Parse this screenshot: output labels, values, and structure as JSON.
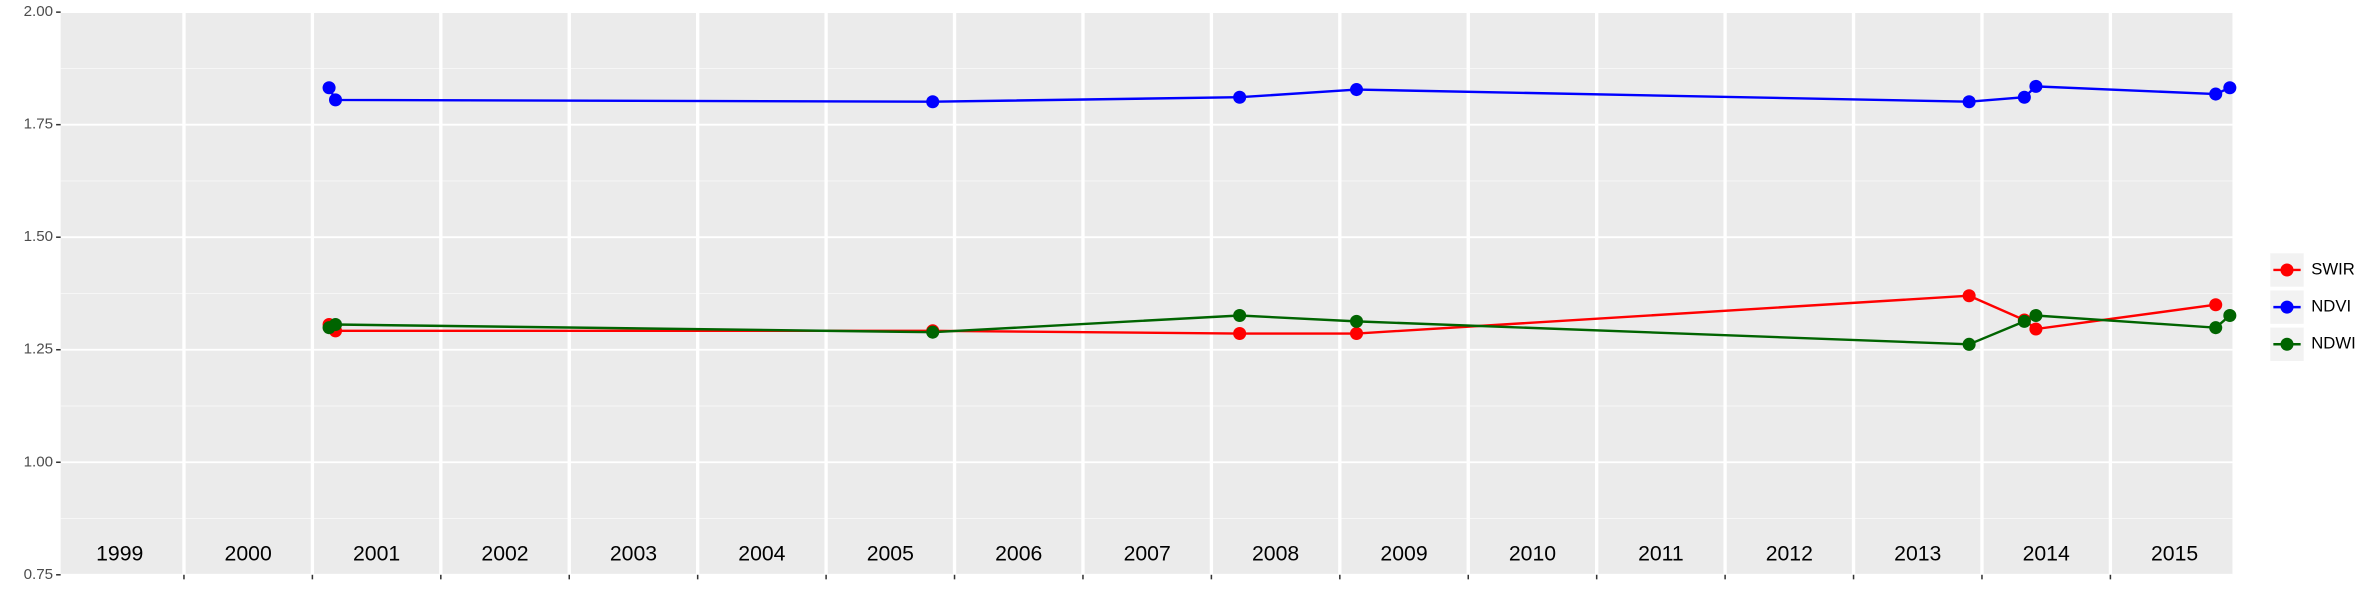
{
  "chart_data": {
    "type": "line",
    "x": [
      2001.13,
      2001.18,
      2005.83,
      2008.22,
      2009.13,
      2013.9,
      2014.33,
      2014.42,
      2015.82,
      2015.93
    ],
    "series": [
      {
        "name": "SWIR",
        "color": "#ff0000",
        "values": [
          1.306,
          1.292,
          1.292,
          1.286,
          1.286,
          1.37,
          1.316,
          1.296,
          1.35,
          null
        ]
      },
      {
        "name": "NDVI",
        "color": "#0000ff",
        "values": [
          1.832,
          1.805,
          1.801,
          1.811,
          1.828,
          1.801,
          1.811,
          1.835,
          1.818,
          1.832
        ]
      },
      {
        "name": "NDWI",
        "color": "#006400",
        "values": [
          1.299,
          1.306,
          1.289,
          1.326,
          1.313,
          1.262,
          1.313,
          1.326,
          1.299,
          1.326
        ]
      }
    ],
    "xlim": [
      1999.04,
      2015.95
    ],
    "xticks": [
      2000,
      2001,
      2002,
      2003,
      2004,
      2005,
      2006,
      2007,
      2008,
      2009,
      2010,
      2011,
      2012,
      2013,
      2014,
      2015
    ],
    "ylim": [
      0.75,
      2.0
    ],
    "yticks": [
      {
        "value": 0.75,
        "label": "0.75"
      },
      {
        "value": 1.0,
        "label": "1.00"
      },
      {
        "value": 1.25,
        "label": "1.25"
      },
      {
        "value": 1.5,
        "label": "1.50"
      },
      {
        "value": 1.75,
        "label": "1.75"
      },
      {
        "value": 2.0,
        "label": "2.00"
      }
    ],
    "annotations": [
      {
        "text": "1999",
        "x": 1999.5
      },
      {
        "text": "2000",
        "x": 2000.5
      },
      {
        "text": "2001",
        "x": 2001.5
      },
      {
        "text": "2002",
        "x": 2002.5
      },
      {
        "text": "2003",
        "x": 2003.5
      },
      {
        "text": "2004",
        "x": 2004.5
      },
      {
        "text": "2005",
        "x": 2005.5
      },
      {
        "text": "2006",
        "x": 2006.5
      },
      {
        "text": "2007",
        "x": 2007.5
      },
      {
        "text": "2008",
        "x": 2008.5
      },
      {
        "text": "2009",
        "x": 2009.5
      },
      {
        "text": "2010",
        "x": 2010.5
      },
      {
        "text": "2011",
        "x": 2011.5
      },
      {
        "text": "2012",
        "x": 2012.5
      },
      {
        "text": "2013",
        "x": 2013.5
      },
      {
        "text": "2014",
        "x": 2014.5
      },
      {
        "text": "2015",
        "x": 2015.5
      }
    ],
    "grid": true,
    "legend": "right"
  }
}
